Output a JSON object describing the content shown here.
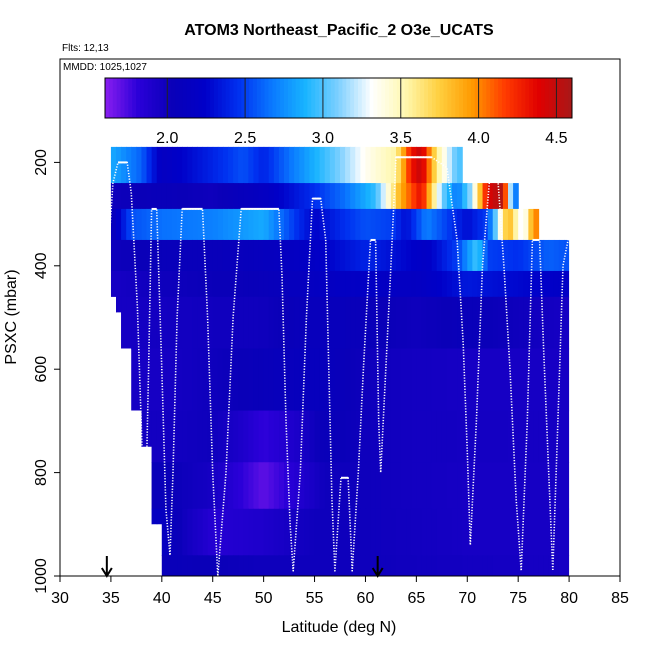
{
  "chart_data": {
    "type": "heatmap",
    "title": "ATOM3 Northeast_Pacific_2 O3e_UCATS",
    "info_lines": [
      "Flts: 12,13",
      "MMDD: 1025,1027"
    ],
    "xlabel": "Latitude (deg N)",
    "ylabel": "PSXC (mbar)",
    "xlim": [
      30,
      85
    ],
    "ylim": [
      1000,
      0
    ],
    "x_ticks": [
      30,
      35,
      40,
      45,
      50,
      55,
      60,
      65,
      70,
      75,
      80,
      85
    ],
    "y_ticks": [
      200,
      400,
      600,
      800,
      1000
    ],
    "colorbar": {
      "range": [
        1.6,
        4.6
      ],
      "ticks": [
        2.0,
        2.5,
        3.0,
        3.5,
        4.0,
        4.5
      ],
      "tick_labels": [
        "2.0",
        "2.5",
        "3.0",
        "3.5",
        "4.0",
        "4.5"
      ],
      "colors": [
        "#8a1ef0",
        "#2a00d8",
        "#0a00b8",
        "#0000c8",
        "#0030f0",
        "#0a78ff",
        "#18b4ff",
        "#7ed0ff",
        "#ffffff",
        "#fff8b0",
        "#ffd040",
        "#ff9a00",
        "#ff3a00",
        "#e00000",
        "#a81818"
      ]
    },
    "arrows_lat": [
      34.6,
      61.2
    ],
    "columns": [
      {
        "lat": [
          35.0,
          40.0
        ],
        "ptop": 265,
        "pbot": 460
      },
      {
        "lat": [
          35.5,
          40.0
        ],
        "ptop": 240,
        "pbot": 490
      },
      {
        "lat": [
          36.0,
          40.0
        ],
        "ptop": 200,
        "pbot": 560
      },
      {
        "lat": [
          37.0,
          40.0
        ],
        "ptop": 200,
        "pbot": 680
      },
      {
        "lat": [
          38.0,
          40.0
        ],
        "ptop": 200,
        "pbot": 750
      },
      {
        "lat": [
          39.0,
          41.0
        ],
        "ptop": 200,
        "pbot": 900
      },
      {
        "lat": [
          40.0,
          80.0
        ],
        "ptop": 200,
        "pbot": 1000
      }
    ],
    "layers": [
      {
        "pressure": [
          170,
          240
        ],
        "values": [
          [
            35.0,
            2.85
          ],
          [
            38.0,
            2.6
          ],
          [
            40.0,
            2.15
          ],
          [
            44.0,
            2.35
          ],
          [
            48.0,
            2.55
          ],
          [
            50.0,
            2.4
          ],
          [
            53.0,
            2.7
          ],
          [
            57.0,
            3.05
          ],
          [
            60.0,
            3.35
          ],
          [
            63.0,
            3.55
          ],
          [
            64.5,
            4.3
          ],
          [
            65.5,
            4.5
          ],
          [
            67.0,
            3.6
          ],
          [
            69.0,
            3.0
          ]
        ]
      },
      {
        "pressure": [
          240,
          290
        ],
        "values": [
          [
            35.0,
            2.0
          ],
          [
            40.0,
            2.05
          ],
          [
            45.0,
            2.0
          ],
          [
            50.0,
            2.15
          ],
          [
            55.0,
            2.45
          ],
          [
            58.0,
            2.65
          ],
          [
            61.0,
            2.95
          ],
          [
            63.5,
            3.9
          ],
          [
            65.5,
            4.35
          ],
          [
            67.5,
            3.1
          ],
          [
            69.0,
            2.65
          ],
          [
            70.5,
            3.2
          ],
          [
            72.0,
            4.4
          ],
          [
            73.5,
            4.6
          ],
          [
            74.5,
            2.7
          ]
        ]
      },
      {
        "pressure": [
          290,
          350
        ],
        "values": [
          [
            35.0,
            2.05
          ],
          [
            37.0,
            2.55
          ],
          [
            40.0,
            2.65
          ],
          [
            45.0,
            2.7
          ],
          [
            50.0,
            2.85
          ],
          [
            52.0,
            2.6
          ],
          [
            55.0,
            2.25
          ],
          [
            58.0,
            2.45
          ],
          [
            60.0,
            2.55
          ],
          [
            62.5,
            2.5
          ],
          [
            64.0,
            2.3
          ],
          [
            66.0,
            2.7
          ],
          [
            68.0,
            2.5
          ],
          [
            70.0,
            2.3
          ],
          [
            72.0,
            2.5
          ],
          [
            74.0,
            3.9
          ],
          [
            75.5,
            3.2
          ],
          [
            76.5,
            4.0
          ]
        ]
      },
      {
        "pressure": [
          350,
          410
        ],
        "values": [
          [
            35.0,
            2.0
          ],
          [
            40.0,
            2.05
          ],
          [
            45.0,
            2.05
          ],
          [
            50.0,
            2.1
          ],
          [
            55.0,
            2.2
          ],
          [
            60.0,
            2.4
          ],
          [
            63.0,
            2.3
          ],
          [
            66.0,
            2.2
          ],
          [
            69.0,
            2.5
          ],
          [
            71.0,
            3.0
          ],
          [
            72.0,
            2.5
          ],
          [
            75.0,
            2.45
          ],
          [
            78.0,
            2.6
          ],
          [
            80.0,
            2.55
          ]
        ]
      },
      {
        "pressure": [
          410,
          460
        ],
        "values": [
          [
            35.0,
            1.95
          ],
          [
            40.0,
            2.0
          ],
          [
            50.0,
            2.05
          ],
          [
            55.0,
            2.15
          ],
          [
            60.0,
            2.2
          ],
          [
            65.0,
            2.15
          ],
          [
            70.0,
            2.35
          ],
          [
            73.0,
            2.3
          ],
          [
            77.0,
            2.25
          ],
          [
            80.0,
            2.2
          ]
        ]
      },
      {
        "pressure": [
          460,
          560
        ],
        "values": [
          [
            35.0,
            1.95
          ],
          [
            40.0,
            1.97
          ],
          [
            50.0,
            2.0
          ],
          [
            55.0,
            2.08
          ],
          [
            60.0,
            2.05
          ],
          [
            65.0,
            2.0
          ],
          [
            70.0,
            2.05
          ],
          [
            75.0,
            2.0
          ],
          [
            80.0,
            1.95
          ]
        ]
      },
      {
        "pressure": [
          560,
          680
        ],
        "values": [
          [
            35.0,
            1.95
          ],
          [
            40.0,
            1.95
          ],
          [
            45.0,
            2.0
          ],
          [
            50.0,
            2.05
          ],
          [
            55.0,
            2.1
          ],
          [
            60.0,
            2.0
          ],
          [
            65.0,
            1.97
          ],
          [
            70.0,
            1.95
          ],
          [
            80.0,
            1.95
          ]
        ]
      },
      {
        "pressure": [
          680,
          780
        ],
        "values": [
          [
            35.0,
            1.97
          ],
          [
            40.0,
            1.97
          ],
          [
            45.0,
            2.0
          ],
          [
            48.0,
            1.9
          ],
          [
            50.0,
            1.8
          ],
          [
            53.0,
            1.9
          ],
          [
            56.0,
            2.05
          ],
          [
            60.0,
            2.0
          ],
          [
            65.0,
            1.97
          ],
          [
            80.0,
            1.95
          ]
        ]
      },
      {
        "pressure": [
          780,
          870
        ],
        "values": [
          [
            35.0,
            2.0
          ],
          [
            40.0,
            2.05
          ],
          [
            45.0,
            1.95
          ],
          [
            48.0,
            1.8
          ],
          [
            50.0,
            1.7
          ],
          [
            53.0,
            1.85
          ],
          [
            56.0,
            2.0
          ],
          [
            60.0,
            2.0
          ],
          [
            65.0,
            1.97
          ],
          [
            70.0,
            1.95
          ],
          [
            80.0,
            1.95
          ]
        ]
      },
      {
        "pressure": [
          870,
          960
        ],
        "values": [
          [
            35.0,
            2.1
          ],
          [
            40.0,
            2.15
          ],
          [
            42.0,
            2.0
          ],
          [
            45.0,
            1.85
          ],
          [
            50.0,
            1.9
          ],
          [
            55.0,
            2.0
          ],
          [
            60.0,
            2.0
          ],
          [
            70.0,
            1.95
          ],
          [
            80.0,
            1.95
          ]
        ]
      },
      {
        "pressure": [
          960,
          1000
        ],
        "values": [
          [
            35.0,
            2.05
          ],
          [
            40.0,
            2.05
          ],
          [
            50.0,
            2.0
          ],
          [
            60.0,
            2.0
          ],
          [
            70.0,
            1.97
          ],
          [
            80.0,
            1.95
          ]
        ]
      }
    ],
    "flight_track": [
      [
        34.6,
        420
      ],
      [
        35.2,
        240
      ],
      [
        35.7,
        200
      ],
      [
        36.6,
        200
      ],
      [
        37.0,
        260
      ],
      [
        37.6,
        480
      ],
      [
        38.1,
        780
      ],
      [
        38.4,
        880
      ],
      [
        38.7,
        600
      ],
      [
        39.0,
        290
      ],
      [
        39.5,
        290
      ],
      [
        40.0,
        600
      ],
      [
        40.4,
        870
      ],
      [
        40.8,
        960
      ],
      [
        41.1,
        800
      ],
      [
        41.5,
        500
      ],
      [
        42.0,
        290
      ],
      [
        44.0,
        290
      ],
      [
        44.5,
        500
      ],
      [
        45.0,
        800
      ],
      [
        45.5,
        1000
      ],
      [
        46.3,
        800
      ],
      [
        47.0,
        500
      ],
      [
        47.8,
        290
      ],
      [
        51.5,
        290
      ],
      [
        51.8,
        420
      ],
      [
        52.2,
        700
      ],
      [
        52.6,
        900
      ],
      [
        52.9,
        990
      ],
      [
        53.6,
        800
      ],
      [
        54.2,
        500
      ],
      [
        54.8,
        270
      ],
      [
        55.6,
        270
      ],
      [
        56.1,
        350
      ],
      [
        56.4,
        600
      ],
      [
        56.7,
        850
      ],
      [
        57.0,
        990
      ],
      [
        57.6,
        810
      ],
      [
        58.3,
        810
      ],
      [
        58.7,
        990
      ],
      [
        59.3,
        800
      ],
      [
        59.8,
        600
      ],
      [
        60.5,
        350
      ],
      [
        61.0,
        350
      ],
      [
        61.3,
        700
      ],
      [
        61.5,
        800
      ],
      [
        62.0,
        600
      ],
      [
        62.5,
        400
      ],
      [
        63.0,
        190
      ],
      [
        66.5,
        190
      ],
      [
        68.0,
        210
      ],
      [
        69.0,
        350
      ],
      [
        69.6,
        550
      ],
      [
        70.0,
        760
      ],
      [
        70.3,
        940
      ],
      [
        70.9,
        700
      ],
      [
        71.5,
        400
      ],
      [
        72.2,
        230
      ],
      [
        73.0,
        230
      ],
      [
        73.6,
        400
      ],
      [
        74.2,
        600
      ],
      [
        74.8,
        850
      ],
      [
        75.3,
        990
      ],
      [
        75.9,
        700
      ],
      [
        76.4,
        350
      ],
      [
        77.1,
        350
      ],
      [
        77.5,
        560
      ],
      [
        78.0,
        800
      ],
      [
        78.4,
        990
      ],
      [
        78.9,
        700
      ],
      [
        79.4,
        400
      ],
      [
        80.0,
        340
      ]
    ]
  }
}
